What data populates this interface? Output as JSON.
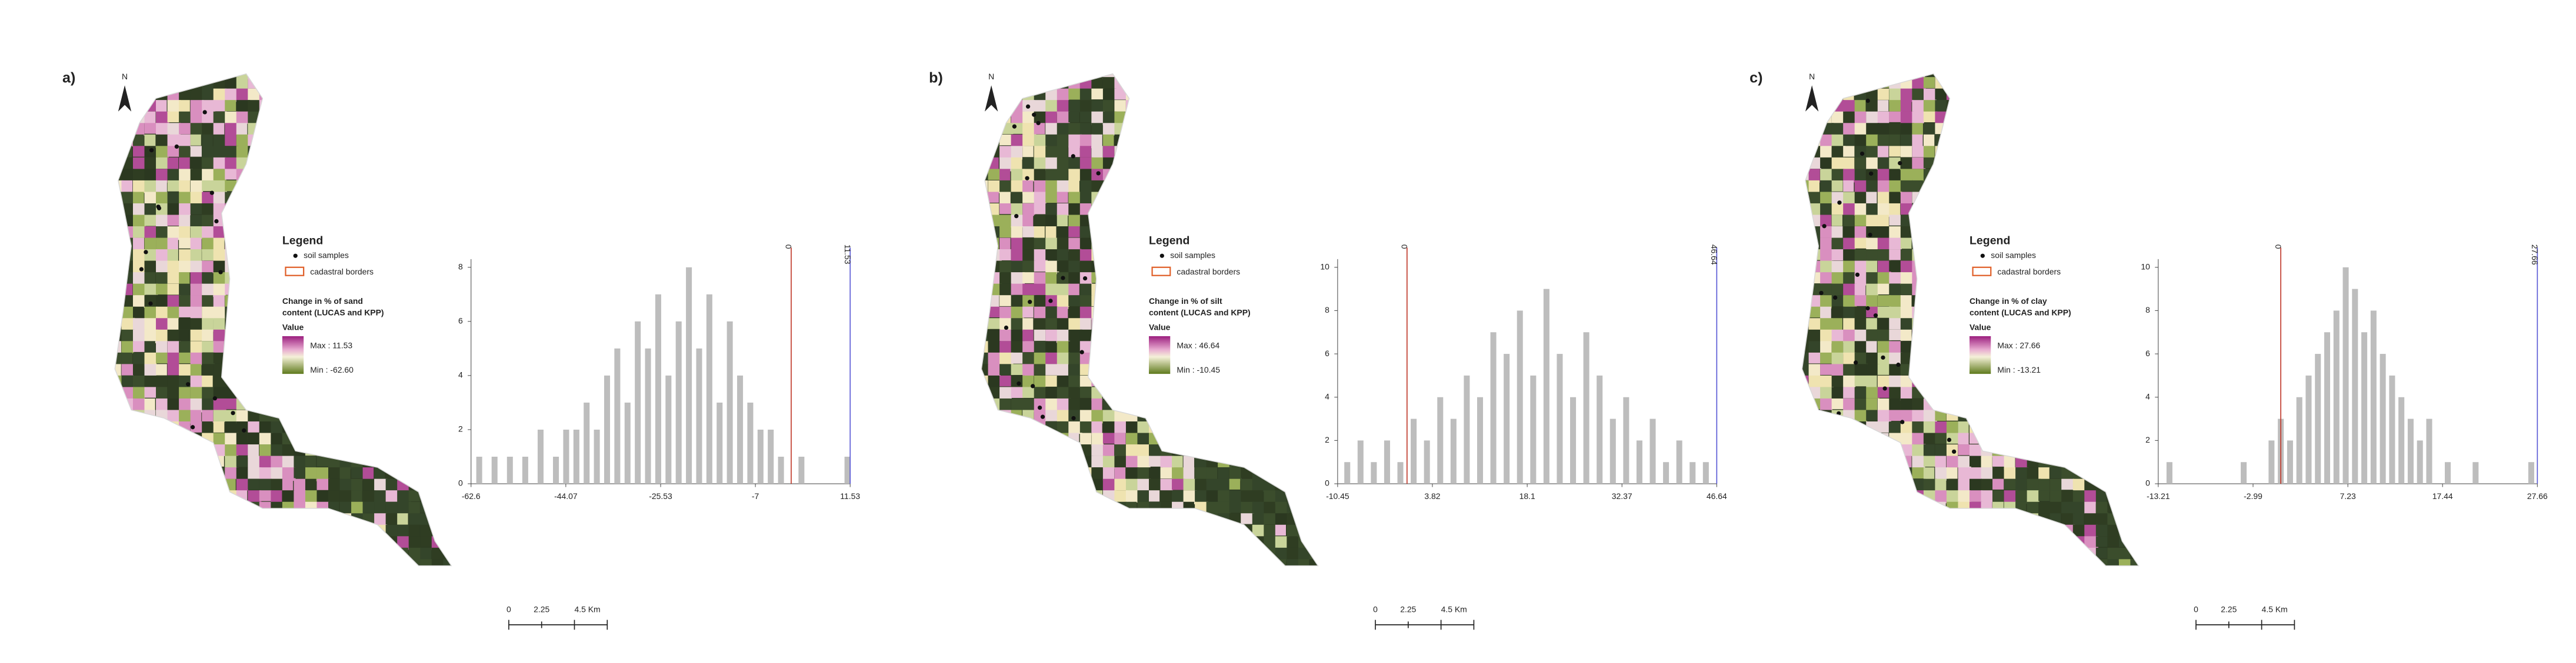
{
  "panels": [
    {
      "label": "a)",
      "north": "N",
      "legend": {
        "title": "Legend",
        "items": [
          "soil samples",
          "cadastral borders"
        ],
        "title_lines": [
          "Change in % of sand",
          "content (LUCAS and KPP)"
        ],
        "value": "Value",
        "max": "Max : 11.53",
        "min": "Min : -62.60"
      },
      "scale_bar": [
        "0",
        "2.25",
        "4.5 Km"
      ]
    },
    {
      "label": "b)",
      "north": "N",
      "legend": {
        "title": "Legend",
        "items": [
          "soil samples",
          "cadastral borders"
        ],
        "title_lines": [
          "Change in % of silt",
          "content (LUCAS and KPP)"
        ],
        "value": "Value",
        "max": "Max : 46.64",
        "min": "Min : -10.45"
      },
      "scale_bar": [
        "0",
        "2.25",
        "4.5 Km"
      ]
    },
    {
      "label": "c)",
      "north": "N",
      "legend": {
        "title": "Legend",
        "items": [
          "soil samples",
          "cadastral borders"
        ],
        "title_lines": [
          "Change in % of clay",
          "content (LUCAS and KPP)"
        ],
        "value": "Value",
        "max": "Max : 27.66",
        "min": "Min : -13.21"
      },
      "scale_bar": [
        "0",
        "2.25",
        "4.5 Km"
      ]
    }
  ],
  "chart_data": [
    {
      "type": "bar",
      "color": "#bdbdbd",
      "x": [
        -61,
        -58,
        -55,
        -52,
        -49,
        -46,
        -44,
        -42,
        -40,
        -38,
        -36,
        -34,
        -32,
        -30,
        -28,
        -26,
        -24,
        -22,
        -20,
        -18,
        -16,
        -14,
        -12,
        -10,
        -8,
        -6,
        -4,
        -2,
        2,
        11
      ],
      "values": [
        1,
        1,
        1,
        1,
        2,
        1,
        2,
        2,
        3,
        2,
        4,
        5,
        3,
        6,
        5,
        7,
        4,
        6,
        8,
        5,
        7,
        3,
        6,
        4,
        3,
        2,
        2,
        1,
        1,
        1
      ],
      "xlim": [
        -62.6,
        11.53
      ],
      "xticks": [
        -62.6,
        -44.07,
        -25.53,
        -7,
        11.53
      ],
      "ylim": [
        0,
        8
      ],
      "yticks": [
        0,
        2,
        4,
        6,
        8
      ],
      "ref_lines": [
        {
          "value": 0,
          "color": "#c0392b"
        },
        {
          "value": 11.53,
          "color": "#5a5ad6"
        }
      ]
    },
    {
      "type": "bar",
      "color": "#bdbdbd",
      "x": [
        -9,
        -7,
        -5,
        -3,
        -1,
        1,
        3,
        5,
        7,
        9,
        11,
        13,
        15,
        17,
        19,
        21,
        23,
        25,
        27,
        29,
        31,
        33,
        35,
        37,
        39,
        41,
        43,
        45
      ],
      "values": [
        1,
        2,
        1,
        2,
        1,
        3,
        2,
        4,
        3,
        5,
        4,
        7,
        6,
        8,
        5,
        9,
        6,
        4,
        7,
        5,
        3,
        4,
        2,
        3,
        1,
        2,
        1,
        1
      ],
      "xlim": [
        -10.45,
        46.64
      ],
      "xticks": [
        -10.45,
        3.82,
        18.1,
        32.37,
        46.64
      ],
      "ylim": [
        0,
        10
      ],
      "yticks": [
        0,
        2,
        4,
        6,
        8,
        10
      ],
      "ref_lines": [
        {
          "value": 0,
          "color": "#c0392b"
        },
        {
          "value": 46.64,
          "color": "#5a5ad6"
        }
      ]
    },
    {
      "type": "bar",
      "color": "#bdbdbd",
      "x": [
        -12,
        -4,
        -1,
        0,
        1,
        2,
        3,
        4,
        5,
        6,
        7,
        8,
        9,
        10,
        11,
        12,
        13,
        14,
        15,
        16,
        18,
        21,
        27
      ],
      "values": [
        1,
        1,
        2,
        3,
        2,
        4,
        5,
        6,
        7,
        8,
        10,
        9,
        7,
        8,
        6,
        5,
        4,
        3,
        2,
        3,
        1,
        1,
        1
      ],
      "xlim": [
        -13.21,
        27.66
      ],
      "xticks": [
        -13.21,
        -2.99,
        7.23,
        17.44,
        27.66
      ],
      "ylim": [
        0,
        10
      ],
      "yticks": [
        0,
        2,
        4,
        6,
        8,
        10
      ],
      "ref_lines": [
        {
          "value": 0,
          "color": "#c0392b"
        },
        {
          "value": 27.66,
          "color": "#5a5ad6"
        }
      ]
    }
  ]
}
